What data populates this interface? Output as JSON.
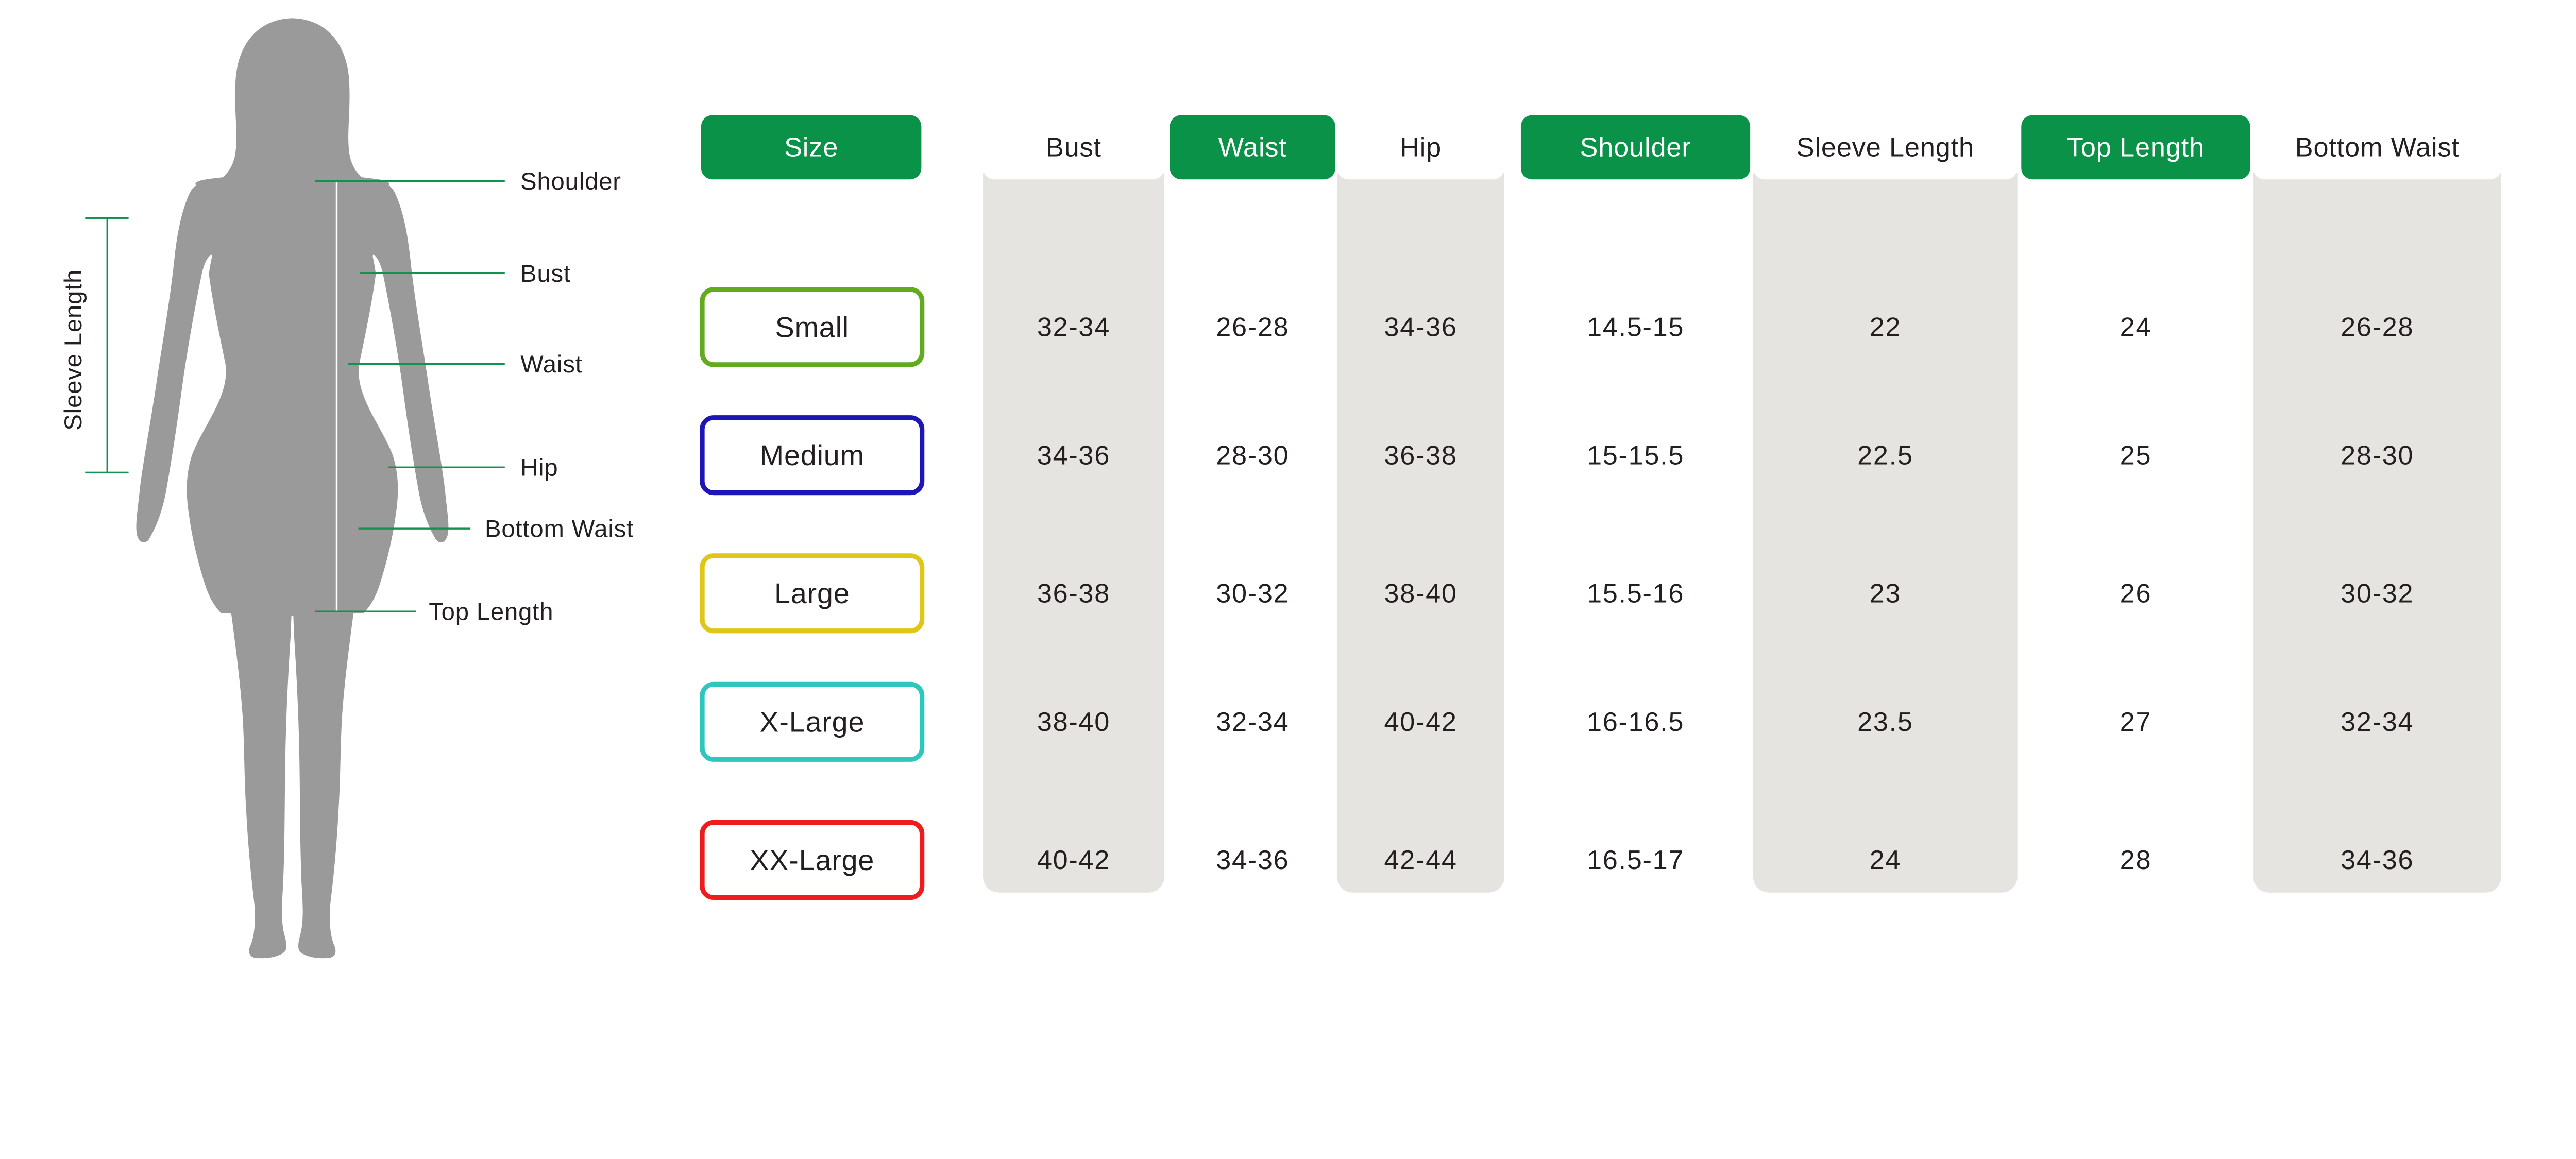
{
  "colors": {
    "header_green": "#0a9248",
    "column_gray": "#e6e4e1",
    "silhouette_gray": "#9a9a9a",
    "annotation_line_green": "#129150",
    "text_dark": "#231f20"
  },
  "figure": {
    "labels": {
      "shoulder": "Shoulder",
      "bust": "Bust",
      "waist": "Waist",
      "hip": "Hip",
      "bottom_waist": "Bottom Waist",
      "top_length": "Top Length",
      "sleeve_length": "Sleeve Length"
    }
  },
  "chart_data": {
    "type": "table",
    "columns": [
      "Size",
      "Bust",
      "Waist",
      "Hip",
      "Shoulder",
      "Sleeve Length",
      "Top Length",
      "Bottom Waist"
    ],
    "rows": [
      {
        "size": "Small",
        "bust": "32-34",
        "waist": "26-28",
        "hip": "34-36",
        "shoulder": "14.5-15",
        "sleeve_length": "22",
        "top_length": "24",
        "bottom_waist": "26-28",
        "color": "#62ab1e"
      },
      {
        "size": "Medium",
        "bust": "34-36",
        "waist": "28-30",
        "hip": "36-38",
        "shoulder": "15-15.5",
        "sleeve_length": "22.5",
        "top_length": "25",
        "bottom_waist": "28-30",
        "color": "#1b16b4"
      },
      {
        "size": "Large",
        "bust": "36-38",
        "waist": "30-32",
        "hip": "38-40",
        "shoulder": "15.5-16",
        "sleeve_length": "23",
        "top_length": "26",
        "bottom_waist": "30-32",
        "color": "#dfc717"
      },
      {
        "size": "X-Large",
        "bust": "38-40",
        "waist": "32-34",
        "hip": "40-42",
        "shoulder": "16-16.5",
        "sleeve_length": "23.5",
        "top_length": "27",
        "bottom_waist": "32-34",
        "color": "#2fc7bd"
      },
      {
        "size": "XX-Large",
        "bust": "40-42",
        "waist": "34-36",
        "hip": "42-44",
        "shoulder": "16.5-17",
        "sleeve_length": "24",
        "top_length": "28",
        "bottom_waist": "34-36",
        "color": "#ee1c1c"
      }
    ]
  }
}
